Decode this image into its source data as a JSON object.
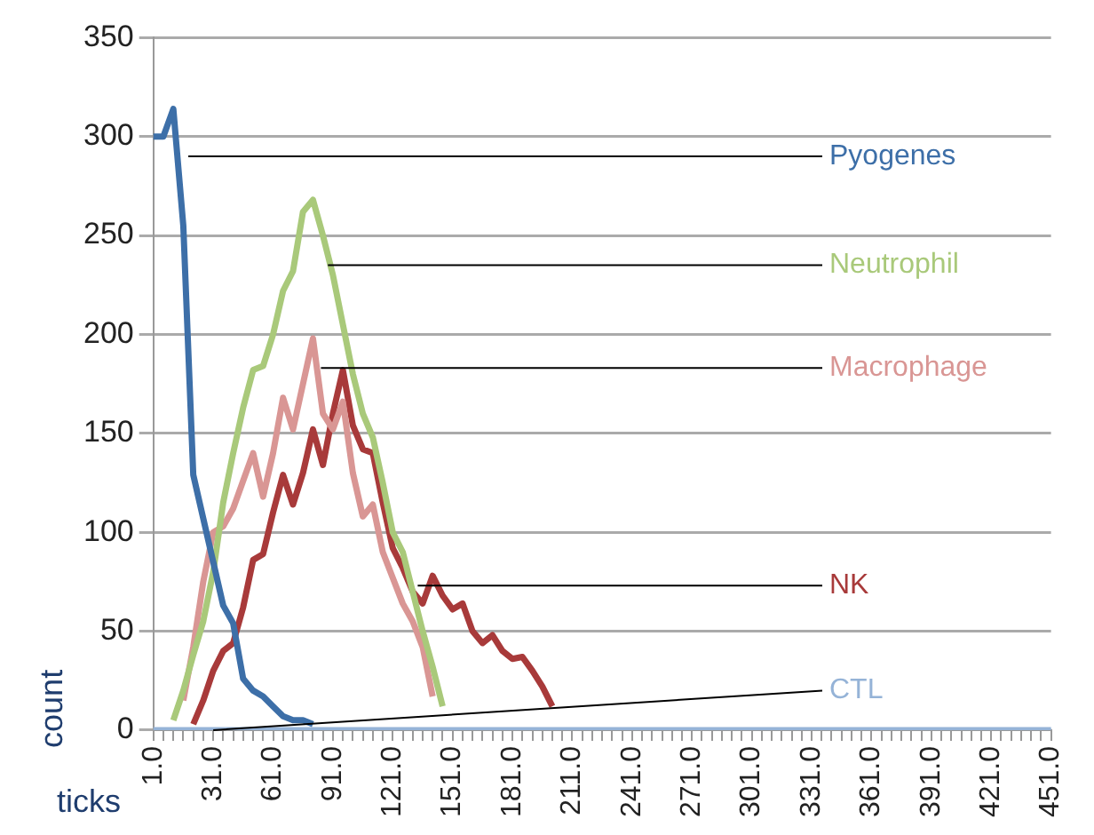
{
  "chart_data": {
    "type": "line",
    "xlabel": "ticks",
    "ylabel": "count",
    "categories": [
      "1.0",
      null,
      null,
      null,
      null,
      null,
      "31.0",
      null,
      null,
      null,
      null,
      null,
      "61.0",
      null,
      null,
      null,
      null,
      null,
      "91.0",
      null,
      null,
      null,
      null,
      null,
      "121.0",
      null,
      null,
      null,
      null,
      null,
      "151.0",
      null,
      null,
      null,
      null,
      null,
      "181.0",
      null,
      null,
      null,
      null,
      null,
      "211.0",
      null,
      null,
      null,
      null,
      null,
      "241.0",
      null,
      null,
      null,
      null,
      null,
      "271.0",
      null,
      null,
      null,
      null,
      null,
      "301.0",
      null,
      null,
      null,
      null,
      null,
      "331.0",
      null,
      null,
      null,
      null,
      null,
      "361.0",
      null,
      null,
      null,
      null,
      null,
      "391.0",
      null,
      null,
      null,
      null,
      null,
      "421.0",
      null,
      null,
      null,
      null,
      null,
      "451.0"
    ],
    "series": [
      {
        "name": "Pyogenes",
        "color": "#3d6fa8",
        "values": [
          300,
          300,
          314,
          255,
          129,
          107,
          85,
          63,
          54,
          26,
          20,
          17,
          12,
          7,
          5,
          5,
          3,
          null,
          null,
          null,
          null,
          null,
          null,
          null,
          null,
          null,
          null,
          null,
          null,
          null,
          null,
          null,
          null,
          null,
          null,
          null,
          null,
          null,
          null,
          null,
          null,
          null,
          null,
          null,
          null,
          null,
          null,
          null,
          null,
          null,
          null,
          null,
          null,
          null,
          null,
          null,
          null,
          null,
          null,
          null,
          null,
          null,
          null,
          null,
          null,
          null,
          null,
          null,
          null,
          null,
          null,
          null,
          null,
          null,
          null,
          null,
          null,
          null,
          null,
          null,
          null,
          null,
          null,
          null,
          null,
          null,
          null,
          null,
          null,
          null,
          null
        ]
      },
      {
        "name": "Neutrophil",
        "color": "#a9c97a",
        "values": [
          null,
          null,
          5,
          20,
          38,
          55,
          80,
          115,
          140,
          163,
          182,
          184,
          200,
          222,
          232,
          262,
          268,
          250,
          230,
          205,
          180,
          160,
          148,
          125,
          100,
          90,
          70,
          50,
          32,
          12,
          null,
          null,
          null,
          null,
          null,
          null,
          null,
          null,
          null,
          null,
          null,
          null,
          null,
          null,
          null,
          null,
          null,
          null,
          null,
          null,
          null,
          null,
          null,
          null,
          null,
          null,
          null,
          null,
          null,
          null,
          null,
          null,
          null,
          null,
          null,
          null,
          null,
          null,
          null,
          null,
          null,
          null,
          null,
          null,
          null,
          null,
          null,
          null,
          null,
          null,
          null,
          null,
          null,
          null,
          null,
          null,
          null,
          null,
          null,
          null,
          null
        ]
      },
      {
        "name": "Macrophage",
        "color": "#d99694",
        "values": [
          null,
          null,
          null,
          15,
          42,
          75,
          100,
          103,
          112,
          126,
          140,
          118,
          140,
          168,
          152,
          175,
          198,
          160,
          152,
          166,
          130,
          108,
          114,
          90,
          77,
          64,
          55,
          42,
          17,
          null,
          null,
          null,
          null,
          null,
          null,
          null,
          null,
          null,
          null,
          null,
          null,
          null,
          null,
          null,
          null,
          null,
          null,
          null,
          null,
          null,
          null,
          null,
          null,
          null,
          null,
          null,
          null,
          null,
          null,
          null,
          null,
          null,
          null,
          null,
          null,
          null,
          null,
          null,
          null,
          null,
          null,
          null,
          null,
          null,
          null,
          null,
          null,
          null,
          null,
          null,
          null,
          null,
          null,
          null,
          null,
          null,
          null,
          null,
          null,
          null,
          null
        ]
      },
      {
        "name": "NK",
        "color": "#a83a3a",
        "values": [
          null,
          null,
          null,
          null,
          3,
          15,
          30,
          40,
          44,
          62,
          86,
          89,
          110,
          129,
          114,
          130,
          152,
          134,
          160,
          182,
          154,
          142,
          140,
          115,
          92,
          82,
          70,
          64,
          78,
          68,
          61,
          64,
          50,
          44,
          48,
          40,
          36,
          37,
          30,
          22,
          12,
          null,
          null,
          null,
          null,
          null,
          null,
          null,
          null,
          null,
          null,
          null,
          null,
          null,
          null,
          null,
          null,
          null,
          null,
          null,
          null,
          null,
          null,
          null,
          null,
          null,
          null,
          null,
          null,
          null,
          null,
          null,
          null,
          null,
          null,
          null,
          null,
          null,
          null,
          null,
          null,
          null,
          null,
          null,
          null,
          null,
          null,
          null,
          null,
          null,
          null
        ]
      },
      {
        "name": "CTL",
        "color": "#95b3d7",
        "values": [
          0,
          0,
          0,
          0,
          0,
          0,
          0,
          0,
          0,
          0,
          0,
          0,
          0,
          0,
          0,
          0,
          0,
          0,
          0,
          0,
          0,
          0,
          0,
          0,
          0,
          0,
          0,
          0,
          0,
          0,
          0,
          0,
          0,
          0,
          0,
          0,
          0,
          0,
          0,
          0,
          0,
          0,
          0,
          0,
          0,
          0,
          0,
          0,
          0,
          0,
          0,
          0,
          0,
          0,
          0,
          0,
          0,
          0,
          0,
          0,
          0,
          0,
          0,
          0,
          0,
          0,
          0,
          0,
          0,
          0,
          0,
          0,
          0,
          0,
          0,
          0,
          0,
          0,
          0,
          0,
          0,
          0,
          0,
          0,
          0,
          0,
          0,
          0,
          0,
          0,
          0
        ]
      }
    ],
    "ylim": [
      0,
      350
    ],
    "yticks": [
      0,
      50,
      100,
      150,
      200,
      250,
      300,
      350
    ],
    "grid": "y",
    "legend": false,
    "marker": "none",
    "line_style": "solid"
  }
}
